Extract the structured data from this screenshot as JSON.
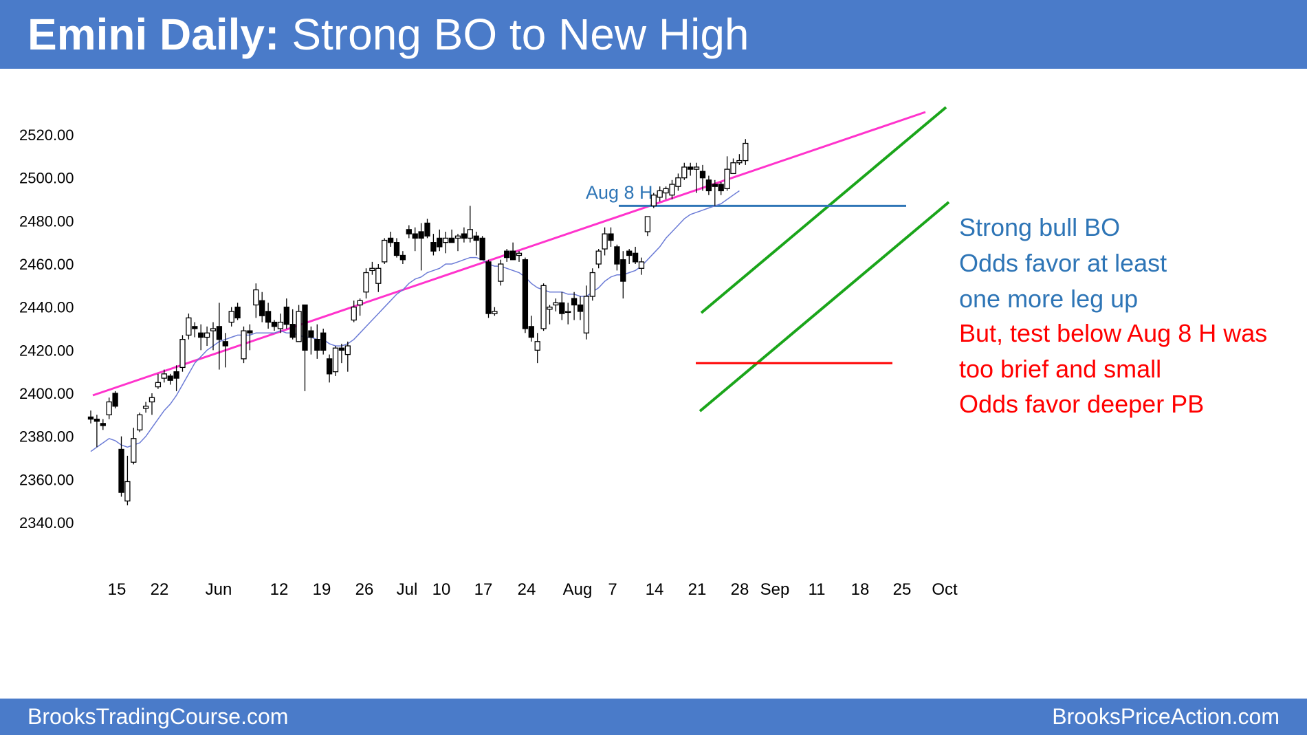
{
  "header": {
    "title_bold": "Emini Daily:",
    "title_rest": "Strong BO to New High"
  },
  "footer": {
    "left": "BrooksTradingCourse.com",
    "right": "BrooksPriceAction.com"
  },
  "annotations": [
    {
      "text": "Strong bull BO",
      "color": "#2e75b6"
    },
    {
      "text": "Odds favor at least",
      "color": "#2e75b6"
    },
    {
      "text": "one more leg up",
      "color": "#2e75b6"
    },
    {
      "text": "But, test below Aug 8 H was",
      "color": "#ff0000"
    },
    {
      "text": "too brief and small",
      "color": "#ff0000"
    },
    {
      "text": "Odds favor deeper PB",
      "color": "#ff0000"
    }
  ],
  "colors": {
    "header_bg": "#4a7bc9",
    "magenta_line": "#ff33cc",
    "channel": "#1aa51a",
    "aug8_line": "#2e75b6",
    "support": "#ff0000",
    "ma": "#6b7bd6"
  },
  "chart_data": {
    "type": "candlestick",
    "ylim": [
      2340,
      2525
    ],
    "y_ticks": [
      "2340.00",
      "2360.00",
      "2380.00",
      "2400.00",
      "2420.00",
      "2440.00",
      "2460.00",
      "2480.00",
      "2500.00",
      "2520.00"
    ],
    "x_labels": [
      "15",
      "22",
      "Jun",
      "12",
      "19",
      "26",
      "Jul",
      "10",
      "17",
      "24",
      "Aug",
      "7",
      "14",
      "21",
      "28",
      "Sep",
      "11",
      "18",
      "25",
      "Oct"
    ],
    "aug8_label": "Aug 8 H",
    "levels": {
      "aug8_high": 2487,
      "support_low": 2414
    },
    "candles": [
      [
        2389,
        2392,
        2386,
        2388
      ],
      [
        2388,
        2390,
        2375,
        2387
      ],
      [
        2386,
        2388,
        2383,
        2385
      ],
      [
        2390,
        2398,
        2388,
        2396
      ],
      [
        2400,
        2401,
        2393,
        2394
      ],
      [
        2374,
        2380,
        2352,
        2354
      ],
      [
        2350,
        2371,
        2348,
        2359
      ],
      [
        2368,
        2384,
        2367,
        2379
      ],
      [
        2383,
        2391,
        2382,
        2390
      ],
      [
        2393,
        2396,
        2391,
        2394
      ],
      [
        2396,
        2400,
        2390,
        2398
      ],
      [
        2403,
        2409,
        2402,
        2405
      ],
      [
        2407,
        2411,
        2405,
        2409
      ],
      [
        2408,
        2409,
        2404,
        2406
      ],
      [
        2410,
        2413,
        2401,
        2407
      ],
      [
        2412,
        2427,
        2410,
        2425
      ],
      [
        2427,
        2437,
        2425,
        2435
      ],
      [
        2431,
        2433,
        2426,
        2430
      ],
      [
        2428,
        2432,
        2420,
        2426
      ],
      [
        2426,
        2431,
        2422,
        2428
      ],
      [
        2429,
        2433,
        2420,
        2430
      ],
      [
        2431,
        2442,
        2411,
        2425
      ],
      [
        2424,
        2428,
        2412,
        2422
      ],
      [
        2433,
        2440,
        2431,
        2438
      ],
      [
        2440,
        2442,
        2434,
        2435
      ],
      [
        2416,
        2431,
        2414,
        2429
      ],
      [
        2429,
        2432,
        2420,
        2428
      ],
      [
        2441,
        2451,
        2435,
        2448
      ],
      [
        2443,
        2447,
        2433,
        2436
      ],
      [
        2438,
        2442,
        2430,
        2433
      ],
      [
        2433,
        2434,
        2429,
        2431
      ],
      [
        2430,
        2437,
        2428,
        2433
      ],
      [
        2440,
        2444,
        2430,
        2432
      ],
      [
        2432,
        2439,
        2425,
        2426
      ],
      [
        2424,
        2441,
        2424,
        2438
      ],
      [
        2441,
        2441,
        2401,
        2420
      ],
      [
        2429,
        2431,
        2418,
        2426
      ],
      [
        2425,
        2432,
        2416,
        2420
      ],
      [
        2428,
        2430,
        2418,
        2420
      ],
      [
        2416,
        2418,
        2405,
        2409
      ],
      [
        2410,
        2422,
        2408,
        2421
      ],
      [
        2421,
        2423,
        2414,
        2420
      ],
      [
        2418,
        2424,
        2410,
        2422
      ],
      [
        2434,
        2443,
        2433,
        2440
      ],
      [
        2441,
        2444,
        2436,
        2443
      ],
      [
        2447,
        2458,
        2444,
        2456
      ],
      [
        2457,
        2461,
        2455,
        2458
      ],
      [
        2451,
        2460,
        2447,
        2458
      ],
      [
        2461,
        2472,
        2460,
        2471
      ],
      [
        2472,
        2475,
        2468,
        2470
      ],
      [
        2470,
        2472,
        2463,
        2464
      ],
      [
        2464,
        2466,
        2460,
        2462
      ],
      [
        2476,
        2478,
        2472,
        2474
      ],
      [
        2474,
        2477,
        2466,
        2472
      ],
      [
        2475,
        2479,
        2457,
        2472
      ],
      [
        2479,
        2481,
        2472,
        2473
      ],
      [
        2470,
        2474,
        2464,
        2466
      ],
      [
        2472,
        2476,
        2466,
        2468
      ],
      [
        2470,
        2475,
        2465,
        2472
      ],
      [
        2472,
        2476,
        2470,
        2470
      ],
      [
        2472,
        2474,
        2466,
        2473
      ],
      [
        2474,
        2477,
        2470,
        2472
      ],
      [
        2472,
        2487,
        2470,
        2476
      ],
      [
        2473,
        2475,
        2464,
        2471
      ],
      [
        2472,
        2473,
        2462,
        2462
      ],
      [
        2461,
        2462,
        2435,
        2437
      ],
      [
        2437,
        2440,
        2436,
        2438
      ],
      [
        2452,
        2462,
        2450,
        2460
      ],
      [
        2466,
        2467,
        2461,
        2463
      ],
      [
        2466,
        2470,
        2462,
        2462
      ],
      [
        2464,
        2466,
        2461,
        2465
      ],
      [
        2462,
        2463,
        2428,
        2430
      ],
      [
        2431,
        2436,
        2424,
        2426
      ],
      [
        2420,
        2428,
        2414,
        2424
      ],
      [
        2430,
        2451,
        2429,
        2450
      ],
      [
        2439,
        2441,
        2432,
        2440
      ],
      [
        2441,
        2444,
        2438,
        2442
      ],
      [
        2442,
        2447,
        2434,
        2437
      ],
      [
        2438,
        2442,
        2432,
        2438
      ],
      [
        2444,
        2447,
        2434,
        2441
      ],
      [
        2441,
        2445,
        2434,
        2438
      ],
      [
        2428,
        2450,
        2425,
        2445
      ],
      [
        2445,
        2458,
        2443,
        2456
      ],
      [
        2460,
        2467,
        2458,
        2466
      ],
      [
        2467,
        2477,
        2464,
        2474
      ],
      [
        2474,
        2477,
        2468,
        2471
      ],
      [
        2468,
        2469,
        2457,
        2460
      ],
      [
        2462,
        2466,
        2444,
        2452
      ],
      [
        2466,
        2467,
        2460,
        2464
      ],
      [
        2465,
        2468,
        2460,
        2461
      ],
      [
        2458,
        2463,
        2455,
        2461
      ],
      [
        2475,
        2482,
        2473,
        2482
      ],
      [
        2487,
        2493,
        2486,
        2492
      ],
      [
        2491,
        2496,
        2489,
        2494
      ],
      [
        2493,
        2496,
        2490,
        2495
      ],
      [
        2492,
        2499,
        2490,
        2497
      ],
      [
        2496,
        2502,
        2494,
        2500
      ],
      [
        2500,
        2507,
        2499,
        2505
      ],
      [
        2505,
        2507,
        2501,
        2504
      ],
      [
        2504,
        2507,
        2493,
        2505
      ],
      [
        2503,
        2506,
        2494,
        2500
      ],
      [
        2499,
        2501,
        2492,
        2494
      ],
      [
        2497,
        2499,
        2487,
        2496
      ],
      [
        2497,
        2498,
        2492,
        2494
      ],
      [
        2495,
        2510,
        2494,
        2504
      ],
      [
        2502,
        2509,
        2502,
        2507
      ],
      [
        2507,
        2511,
        2506,
        2508
      ],
      [
        2508,
        2518,
        2506,
        2516
      ]
    ],
    "moving_average": [
      2373,
      2375,
      2377,
      2379,
      2378,
      2376,
      2375,
      2376,
      2377,
      2380,
      2384,
      2388,
      2392,
      2395,
      2399,
      2404,
      2409,
      2414,
      2417,
      2420,
      2422,
      2424,
      2425,
      2426,
      2427,
      2427,
      2427,
      2428,
      2428,
      2428,
      2428,
      2429,
      2428,
      2428,
      2427,
      2426,
      2426,
      2425,
      2425,
      2423,
      2422,
      2422,
      2423,
      2425,
      2428,
      2431,
      2434,
      2437,
      2440,
      2443,
      2446,
      2448,
      2451,
      2453,
      2454,
      2456,
      2457,
      2458,
      2460,
      2460,
      2461,
      2462,
      2463,
      2463,
      2462,
      2460,
      2459,
      2459,
      2458,
      2457,
      2456,
      2454,
      2451,
      2449,
      2448,
      2447,
      2447,
      2447,
      2446,
      2446,
      2445,
      2445,
      2447,
      2449,
      2452,
      2454,
      2455,
      2455,
      2456,
      2457,
      2459,
      2462,
      2465,
      2468,
      2472,
      2475,
      2478,
      2481,
      2483,
      2484,
      2485,
      2486,
      2487,
      2488,
      2490,
      2492,
      2494
    ]
  }
}
